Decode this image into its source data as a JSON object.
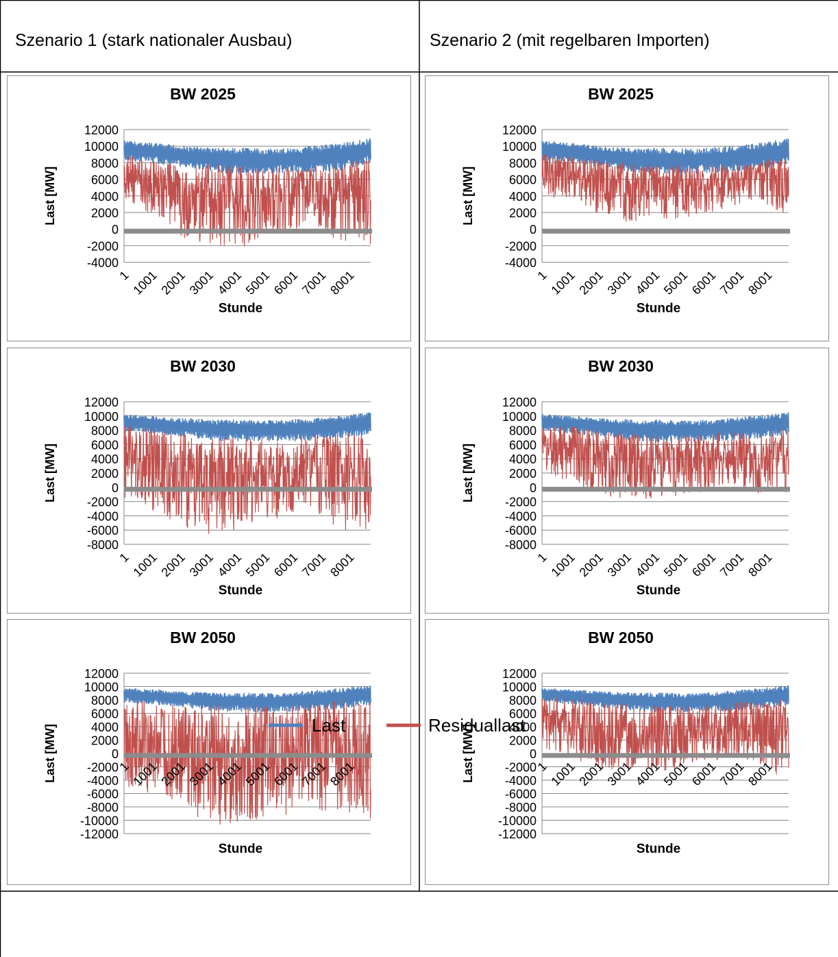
{
  "headers": {
    "scenario1": "Szenario 1 (stark nationaler Ausbau)",
    "scenario2": "Szenario 2 (mit regelbaren Importen)"
  },
  "legend": {
    "last": "Last",
    "residual": "Residuallast"
  },
  "colors": {
    "last": "#4f81bd",
    "residual": "#c0504d",
    "zero_band": "#8c8c8c",
    "grid": "#868686"
  },
  "chart_data": [
    {
      "type": "line",
      "title": "BW 2025",
      "xlabel": "Stunde",
      "ylabel": "Last [MW]",
      "ylim": [
        -4000,
        12000
      ],
      "yticks": [
        "12000",
        "10000",
        "8000",
        "6000",
        "4000",
        "2000",
        "0",
        "-2000",
        "-4000"
      ],
      "xticks": [
        "1",
        "1001",
        "2001",
        "3001",
        "4001",
        "5001",
        "6001",
        "7001",
        "8001"
      ],
      "series": [
        {
          "name": "Last",
          "envelope": {
            "min": [
              8200,
              7900,
              7400,
              6800,
              6500,
              6700,
              6800,
              7000,
              7800
            ],
            "max": [
              10700,
              10400,
              10000,
              9800,
              9800,
              9700,
              10000,
              10400,
              11000
            ]
          }
        },
        {
          "name": "Residuallast",
          "envelope": {
            "min": [
              3500,
              1500,
              -1500,
              -2200,
              -2100,
              -800,
              0,
              -1500,
              -1800
            ],
            "max": [
              9200,
              8200,
              7500,
              8000,
              7500,
              7500,
              7500,
              8000,
              8500
            ]
          }
        }
      ]
    },
    {
      "type": "line",
      "title": "BW 2025",
      "xlabel": "Stunde",
      "ylabel": "Last [MW]",
      "ylim": [
        -4000,
        12000
      ],
      "yticks": [
        "12000",
        "10000",
        "8000",
        "6000",
        "4000",
        "2000",
        "0",
        "-2000",
        "-4000"
      ],
      "xticks": [
        "1",
        "1001",
        "2001",
        "3001",
        "4001",
        "5001",
        "6001",
        "7001",
        "8001"
      ],
      "series": [
        {
          "name": "Last",
          "envelope": {
            "min": [
              8200,
              7900,
              7400,
              6800,
              6500,
              6700,
              6800,
              7000,
              7800
            ],
            "max": [
              10700,
              10400,
              10000,
              9800,
              9800,
              9700,
              10000,
              10400,
              11000
            ]
          }
        },
        {
          "name": "Residuallast",
          "envelope": {
            "min": [
              4000,
              3500,
              1500,
              500,
              1000,
              1500,
              2500,
              3500,
              1500
            ],
            "max": [
              9200,
              8700,
              8200,
              8000,
              7800,
              7800,
              8000,
              8200,
              8800
            ]
          }
        }
      ]
    },
    {
      "type": "line",
      "title": "BW 2030",
      "xlabel": "Stunde",
      "ylabel": "Last [MW]",
      "ylim": [
        -8000,
        12000
      ],
      "yticks": [
        "12000",
        "10000",
        "8000",
        "6000",
        "4000",
        "2000",
        "0",
        "-2000",
        "-4000",
        "-6000",
        "-8000"
      ],
      "xticks": [
        "1",
        "1001",
        "2001",
        "3001",
        "4001",
        "5001",
        "6001",
        "7001",
        "8001"
      ],
      "series": [
        {
          "name": "Last",
          "envelope": {
            "min": [
              7800,
              7500,
              7000,
              6500,
              6300,
              6400,
              6500,
              6800,
              7400
            ],
            "max": [
              10300,
              10000,
              9700,
              9500,
              9500,
              9400,
              9700,
              10100,
              10600
            ]
          }
        },
        {
          "name": "Residuallast",
          "envelope": {
            "min": [
              -1500,
              -3500,
              -6400,
              -6700,
              -5500,
              -4500,
              -3500,
              -6000,
              -6200
            ],
            "max": [
              8800,
              8200,
              7500,
              7200,
              7000,
              7000,
              7300,
              7500,
              8000
            ]
          }
        }
      ]
    },
    {
      "type": "line",
      "title": "BW 2030",
      "xlabel": "Stunde",
      "ylabel": "Last [MW]",
      "ylim": [
        -8000,
        12000
      ],
      "yticks": [
        "12000",
        "10000",
        "8000",
        "6000",
        "4000",
        "2000",
        "0",
        "-2000",
        "-4000",
        "-6000",
        "-8000"
      ],
      "xticks": [
        "1",
        "1001",
        "2001",
        "3001",
        "4001",
        "5001",
        "6001",
        "7001",
        "8001"
      ],
      "series": [
        {
          "name": "Last",
          "envelope": {
            "min": [
              7800,
              7500,
              7000,
              6500,
              6300,
              6400,
              6500,
              6800,
              7400
            ],
            "max": [
              10300,
              10000,
              9700,
              9500,
              9500,
              9400,
              9700,
              10100,
              10600
            ]
          }
        },
        {
          "name": "Residuallast",
          "envelope": {
            "min": [
              2000,
              500,
              -1200,
              -1800,
              -1500,
              -800,
              0,
              -900,
              -1200
            ],
            "max": [
              8800,
              8500,
              8000,
              7500,
              7300,
              7500,
              7800,
              8200,
              8300
            ]
          }
        }
      ]
    },
    {
      "type": "line",
      "title": "BW 2050",
      "xlabel": "Stunde",
      "ylabel": "Last [MW]",
      "ylim": [
        -12000,
        12000
      ],
      "yticks": [
        "12000",
        "10000",
        "8000",
        "6000",
        "4000",
        "2000",
        "0",
        "-2000",
        "-4000",
        "-6000",
        "-8000",
        "-10000",
        "-12000"
      ],
      "xticks": [
        "1",
        "1001",
        "2001",
        "3001",
        "4001",
        "5001",
        "6001",
        "7001",
        "8001"
      ],
      "series": [
        {
          "name": "Last",
          "envelope": {
            "min": [
              7600,
              7300,
              6800,
              6300,
              6100,
              6200,
              6300,
              6600,
              7200
            ],
            "max": [
              9800,
              9600,
              9300,
              9100,
              9100,
              9000,
              9400,
              9800,
              10200
            ]
          }
        },
        {
          "name": "Residuallast",
          "envelope": {
            "min": [
              -5000,
              -6500,
              -9000,
              -10800,
              -11000,
              -9500,
              -8500,
              -9000,
              -10500
            ],
            "max": [
              8000,
              7800,
              7500,
              7200,
              7300,
              7000,
              7500,
              8000,
              7800
            ]
          }
        }
      ]
    },
    {
      "type": "line",
      "title": "BW 2050",
      "xlabel": "Stunde",
      "ylabel": "Last [MW]",
      "ylim": [
        -12000,
        12000
      ],
      "yticks": [
        "12000",
        "10000",
        "8000",
        "6000",
        "4000",
        "2000",
        "0",
        "-2000",
        "-4000",
        "-6000",
        "-8000",
        "-10000",
        "-12000"
      ],
      "xticks": [
        "1",
        "1001",
        "2001",
        "3001",
        "4001",
        "5001",
        "6001",
        "7001",
        "8001"
      ],
      "series": [
        {
          "name": "Last",
          "envelope": {
            "min": [
              7600,
              7300,
              6800,
              6300,
              6100,
              6200,
              6300,
              6600,
              7200
            ],
            "max": [
              9800,
              9600,
              9300,
              9100,
              9100,
              9000,
              9400,
              9800,
              10200
            ]
          }
        },
        {
          "name": "Residuallast",
          "envelope": {
            "min": [
              1000,
              -1000,
              -2500,
              -3000,
              -2800,
              -1500,
              -1000,
              -2000,
              -4000
            ],
            "max": [
              8500,
              8200,
              7800,
              7300,
              7200,
              7200,
              7600,
              8000,
              8200
            ]
          }
        }
      ]
    }
  ]
}
